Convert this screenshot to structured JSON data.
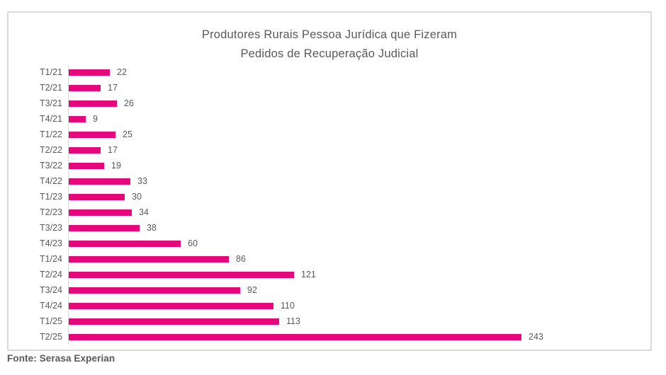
{
  "colors": {
    "bar": "#E4087C",
    "text": "#595959",
    "border": "#D9D9D9",
    "axis": "#D9D9D9",
    "source_text": "#595959"
  },
  "source": "Fonte: Serasa Experian",
  "chart_data": {
    "type": "bar",
    "orientation": "horizontal",
    "title": "Produtores Rurais Pessoa Jurídica que Fizeram Pedidos de Recuperação Judicial",
    "title_line1": "Produtores Rurais Pessoa Jurídica que Fizeram",
    "title_line2": "Pedidos de Recuperação Judicial",
    "categories": [
      "T1/21",
      "T2/21",
      "T3/21",
      "T4/21",
      "T1/22",
      "T2/22",
      "T3/22",
      "T4/22",
      "T1/23",
      "T2/23",
      "T3/23",
      "T4/23",
      "T1/24",
      "T2/24",
      "T3/24",
      "T4/24",
      "T1/25",
      "T2/25"
    ],
    "values": [
      22,
      17,
      26,
      9,
      25,
      17,
      19,
      33,
      30,
      34,
      38,
      60,
      86,
      121,
      92,
      110,
      113,
      243
    ],
    "xlim": [
      0,
      250
    ],
    "value_labels_shown": true,
    "legend": "none",
    "grid": false,
    "source": "Fonte: Serasa Experian"
  }
}
